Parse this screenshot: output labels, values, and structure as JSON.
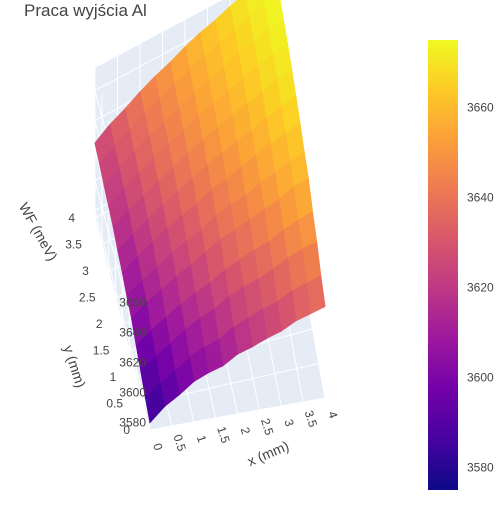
{
  "chart_data": {
    "type": "surface",
    "title": "Praca wyjścia Al",
    "xlabel": "x (mm)",
    "ylabel": "y (mm)",
    "zlabel": "WF (meV)",
    "x_ticks": [
      "0",
      "0.5",
      "1",
      "1.5",
      "2",
      "2.5",
      "3",
      "3.5",
      "4"
    ],
    "y_ticks": [
      "0",
      "0.5",
      "1",
      "1.5",
      "2",
      "2.5",
      "3",
      "3.5",
      "4"
    ],
    "z_ticks": [
      "3580",
      "3600",
      "3620",
      "3640",
      "3660"
    ],
    "xlim": [
      0,
      4
    ],
    "ylim": [
      0,
      4
    ],
    "zlim": [
      3575,
      3675
    ],
    "colorbar": {
      "ticks": [
        "3580",
        "3600",
        "3620",
        "3640",
        "3660"
      ],
      "range": [
        3575,
        3675
      ],
      "colorscale": "plasma",
      "colors": [
        "#0d0887",
        "#46039f",
        "#7201a8",
        "#9c179e",
        "#bd3786",
        "#d8576b",
        "#ed7953",
        "#fb9f3a",
        "#fdca26",
        "#f0f921"
      ]
    },
    "grid": true,
    "z": [
      [
        3580,
        3589,
        3595,
        3602,
        3606,
        3609,
        3615,
        3618,
        3622,
        3625,
        3630,
        3633,
        3636
      ],
      [
        3585,
        3592,
        3598,
        3605,
        3610,
        3613,
        3619,
        3623,
        3627,
        3630,
        3635,
        3638,
        3641
      ],
      [
        3591,
        3598,
        3604,
        3611,
        3616,
        3620,
        3626,
        3630,
        3633,
        3637,
        3642,
        3646,
        3648
      ],
      [
        3596,
        3603,
        3609,
        3615,
        3620,
        3624,
        3630,
        3634,
        3638,
        3641,
        3646,
        3650,
        3653
      ],
      [
        3602,
        3610,
        3615,
        3621,
        3626,
        3631,
        3637,
        3640,
        3644,
        3648,
        3652,
        3657,
        3660
      ],
      [
        3605,
        3612,
        3618,
        3624,
        3629,
        3633,
        3639,
        3643,
        3646,
        3651,
        3655,
        3659,
        3662
      ],
      [
        3609,
        3616,
        3622,
        3628,
        3633,
        3637,
        3643,
        3646,
        3651,
        3655,
        3659,
        3663,
        3666
      ],
      [
        3612,
        3619,
        3625,
        3631,
        3636,
        3641,
        3646,
        3650,
        3654,
        3657,
        3662,
        3666,
        3669
      ],
      [
        3616,
        3623,
        3628,
        3634,
        3639,
        3644,
        3649,
        3653,
        3657,
        3661,
        3664,
        3669,
        3671
      ],
      [
        3618,
        3625,
        3631,
        3637,
        3642,
        3646,
        3652,
        3655,
        3659,
        3663,
        3667,
        3671,
        3673
      ],
      [
        3620,
        3627,
        3633,
        3639,
        3643,
        3648,
        3653,
        3657,
        3661,
        3665,
        3668,
        3672,
        3674
      ],
      [
        3623,
        3629,
        3635,
        3641,
        3646,
        3650,
        3655,
        3659,
        3663,
        3666,
        3670,
        3673,
        3675
      ],
      [
        3625,
        3632,
        3637,
        3643,
        3648,
        3652,
        3657,
        3661,
        3664,
        3668,
        3671,
        3674,
        3675
      ]
    ]
  }
}
